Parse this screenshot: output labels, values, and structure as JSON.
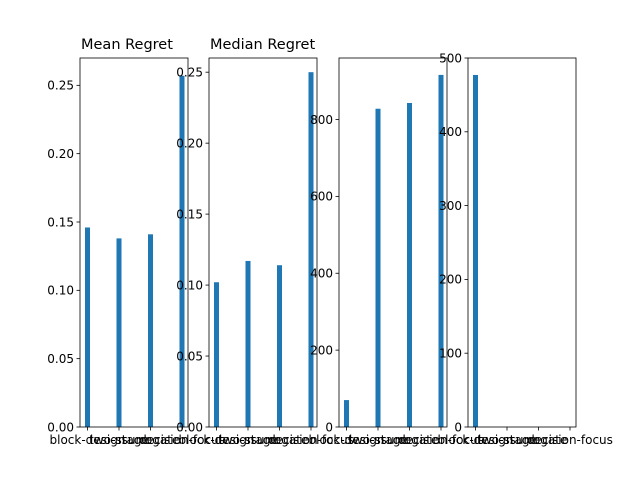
{
  "figure": {
    "background": "#ffffff"
  },
  "chart_data": [
    {
      "type": "bar",
      "title": "Mean Regret",
      "xlabel": "",
      "ylabel": "",
      "categories": [
        "block-design",
        "two-stage",
        "surrogate",
        "decision-focus"
      ],
      "values": [
        0.146,
        0.138,
        0.141,
        0.257
      ],
      "ylim": [
        0,
        0.27
      ],
      "yticks": [
        0.0,
        0.05,
        0.1,
        0.15,
        0.2,
        0.25
      ],
      "ytick_labels": [
        "0.00",
        "0.05",
        "0.10",
        "0.15",
        "0.20",
        "0.25"
      ],
      "color": "#1f77b4",
      "grid": false
    },
    {
      "type": "bar",
      "title": "Median Regret",
      "xlabel": "",
      "ylabel": "",
      "categories": [
        "block-design",
        "two-stage",
        "surrogate",
        "decision-focus"
      ],
      "values": [
        0.102,
        0.117,
        0.114,
        0.25
      ],
      "ylim": [
        0,
        0.26
      ],
      "yticks": [
        0.0,
        0.05,
        0.1,
        0.15,
        0.2,
        0.25
      ],
      "ytick_labels": [
        "0.00",
        "0.05",
        "0.10",
        "0.15",
        "0.20",
        "0.25"
      ],
      "color": "#1f77b4",
      "grid": false
    },
    {
      "type": "bar",
      "title": "",
      "xlabel": "",
      "ylabel": "",
      "categories": [
        "block-design",
        "two-stage",
        "surrogate",
        "decision-focus"
      ],
      "values": [
        70,
        828,
        843,
        916
      ],
      "ylim": [
        0,
        960
      ],
      "yticks": [
        0,
        200,
        400,
        600,
        800
      ],
      "ytick_labels": [
        "0",
        "200",
        "400",
        "600",
        "800"
      ],
      "color": "#1f77b4",
      "grid": false
    },
    {
      "type": "bar",
      "title": "",
      "xlabel": "",
      "ylabel": "",
      "categories": [
        "block-design",
        "two-stage",
        "surrogate",
        "decision-focus"
      ],
      "values": [
        477,
        0,
        0,
        0
      ],
      "ylim": [
        0,
        500
      ],
      "yticks": [
        0,
        100,
        200,
        300,
        400,
        500
      ],
      "ytick_labels": [
        "0",
        "100",
        "200",
        "300",
        "400",
        "500"
      ],
      "color": "#1f77b4",
      "grid": false
    }
  ]
}
